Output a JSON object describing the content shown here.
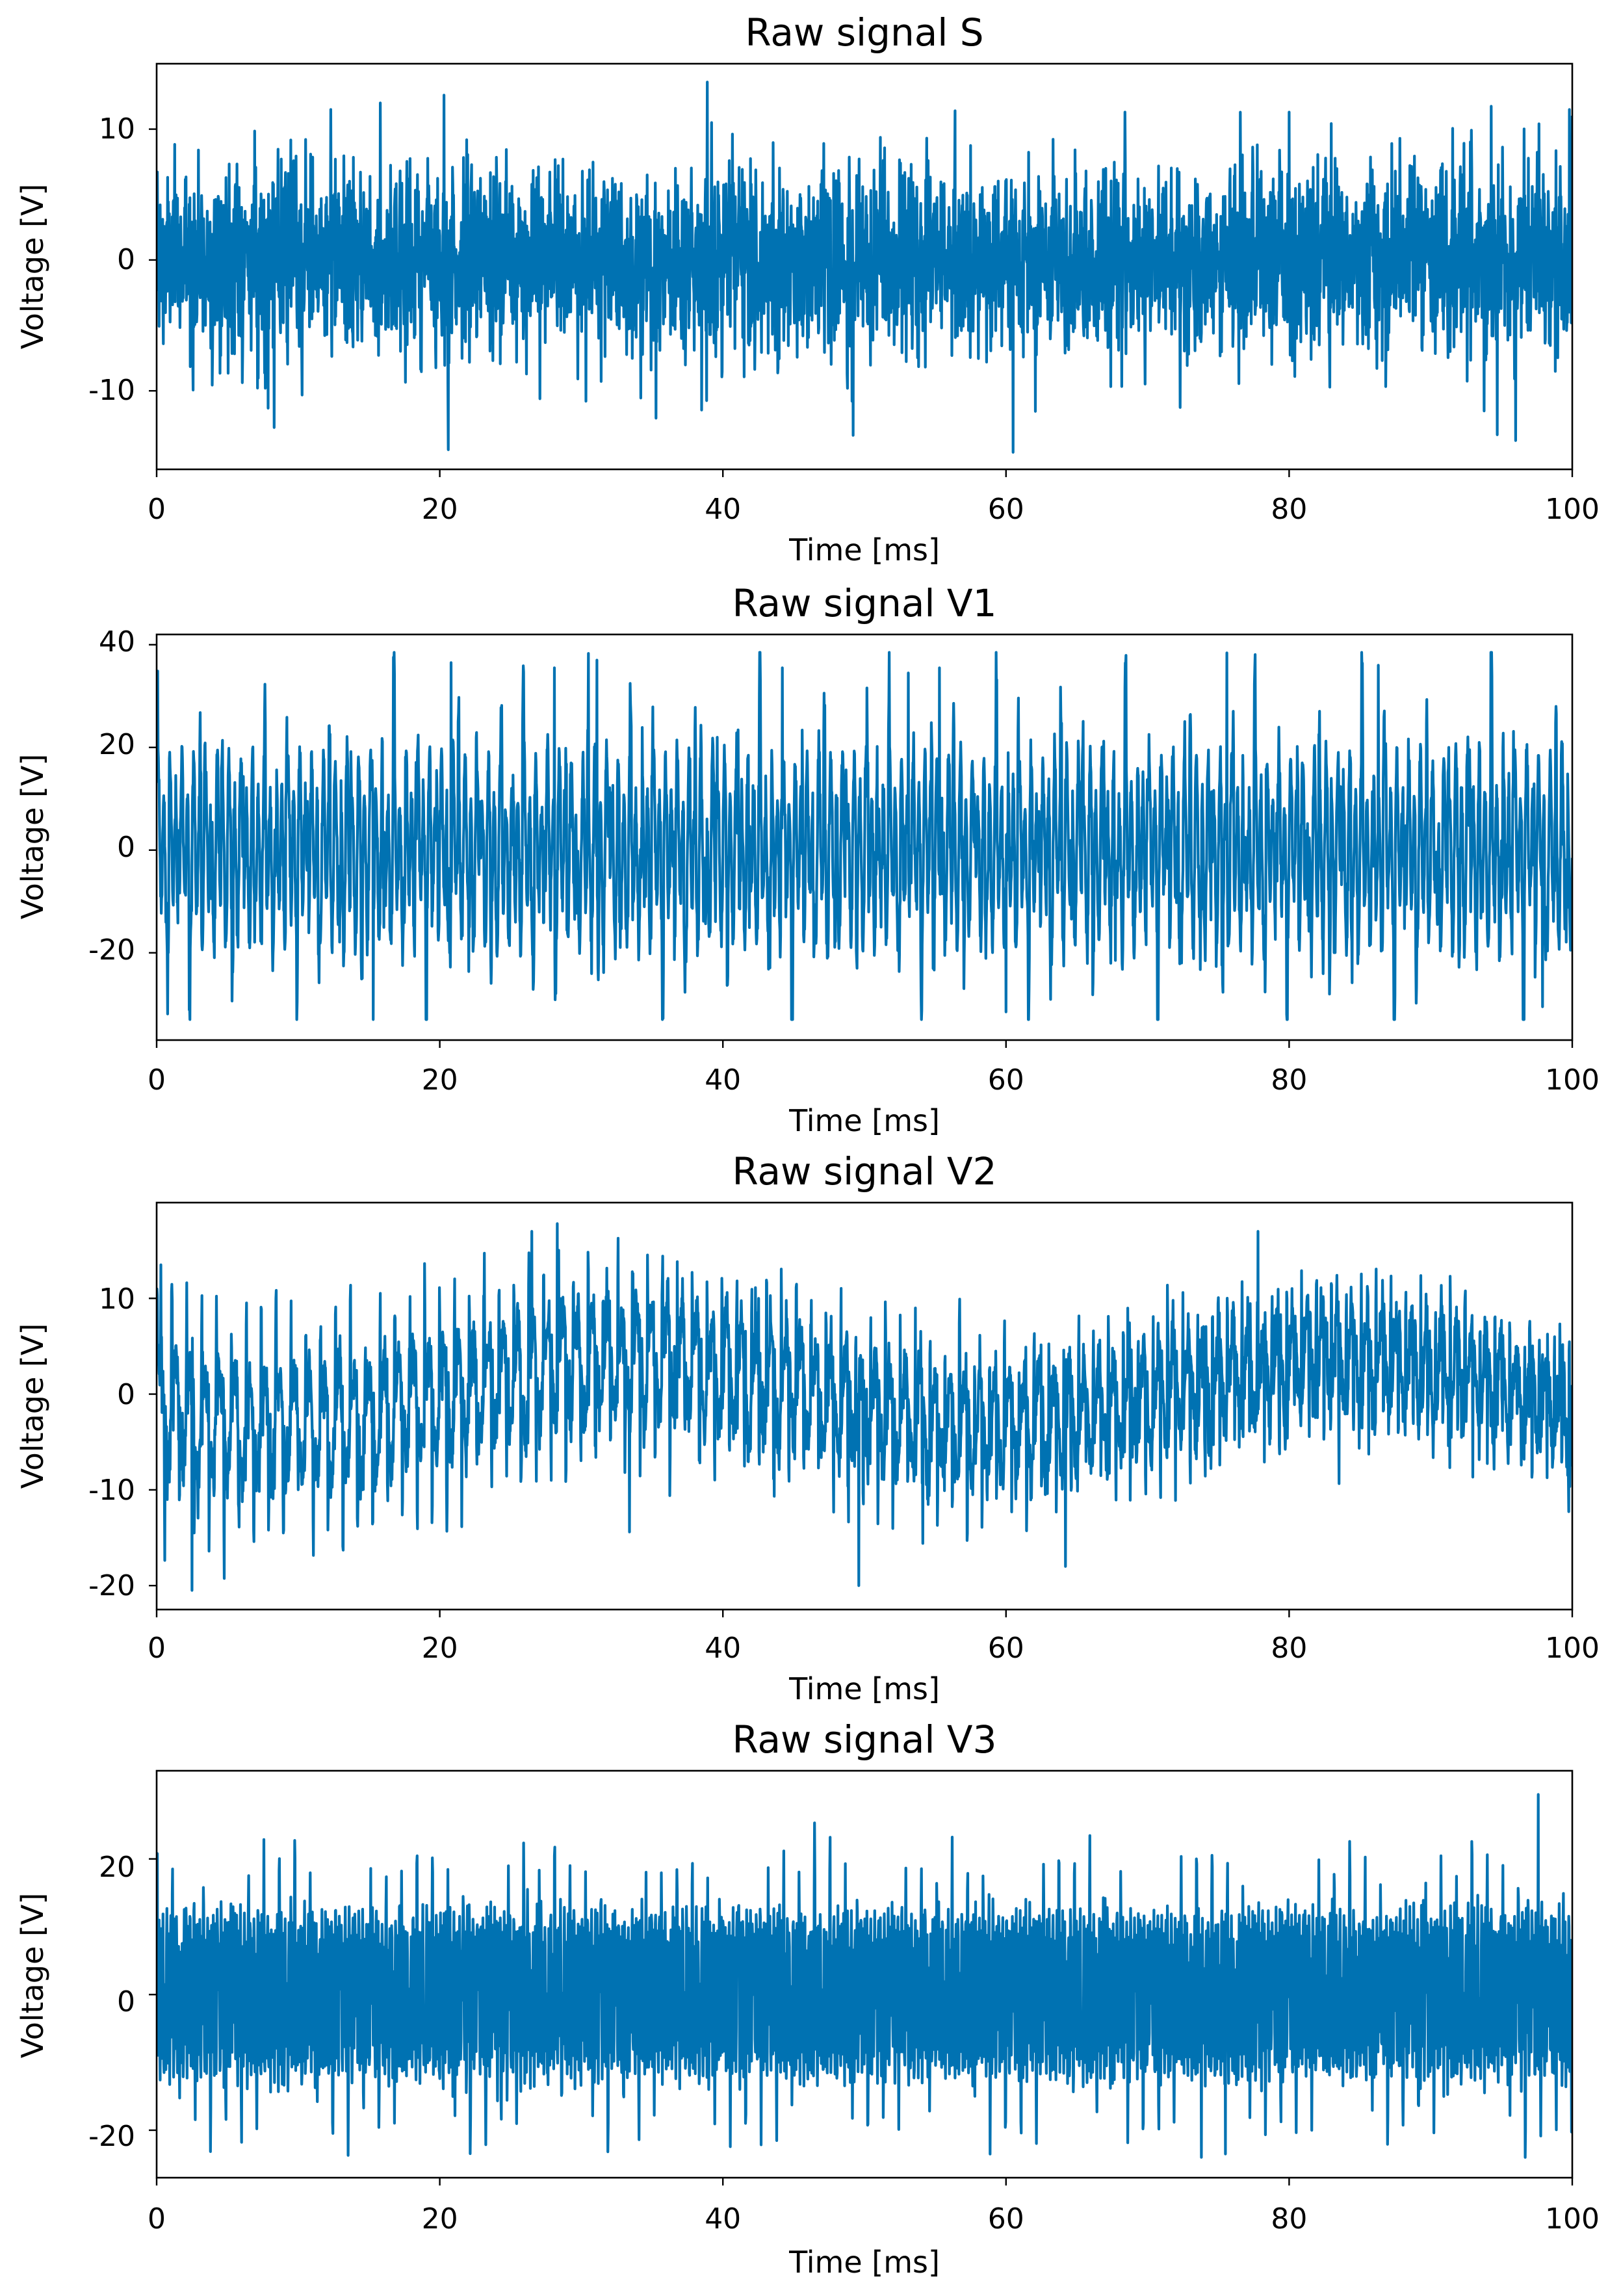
{
  "figure": {
    "line_color": "#0072b2",
    "axes_color": "#000000",
    "background": "#ffffff"
  },
  "chart_data": [
    {
      "type": "line",
      "title": "Raw signal S",
      "xlabel": "Time [ms]",
      "ylabel": "Voltage [V]",
      "xlim": [
        0,
        100
      ],
      "ylim": [
        -16,
        15
      ],
      "xticks": [
        0,
        20,
        40,
        60,
        80,
        100
      ],
      "yticks": [
        -10,
        0,
        10
      ],
      "grid": false,
      "series": [
        {
          "name": "S",
          "description": "broadband noise, roughly zero-mean",
          "sample_rate_per_ms": 40,
          "components": [],
          "noise_sd": 3.6,
          "clip": [
            -14.7,
            13.8
          ],
          "peaks": [
            [
              8.3,
              -12.8
            ],
            [
              12.3,
              11.5
            ],
            [
              15.8,
              12.0
            ],
            [
              20.3,
              12.6
            ],
            [
              20.6,
              -14.5
            ],
            [
              38.9,
              13.6
            ],
            [
              39.2,
              10.5
            ],
            [
              49.2,
              -13.4
            ],
            [
              56.4,
              11.4
            ],
            [
              60.5,
              -14.7
            ],
            [
              68.4,
              11.3
            ],
            [
              80.0,
              11.3
            ],
            [
              96.0,
              -13.8
            ],
            [
              99.8,
              11.5
            ]
          ]
        }
      ]
    },
    {
      "type": "line",
      "title": "Raw signal V1",
      "xlabel": "Time [ms]",
      "ylabel": "Voltage [V]",
      "xlim": [
        0,
        100
      ],
      "ylim": [
        -37,
        42
      ],
      "xticks": [
        0,
        20,
        40,
        60,
        80,
        100
      ],
      "yticks": [
        -20,
        0,
        20,
        40
      ],
      "grid": false,
      "series": [
        {
          "name": "V1",
          "description": "periodic spike train, spikes ~+30 V and ~-25 V",
          "sample_rate_per_ms": 40,
          "components": [
            [
              2.4,
              14,
              0
            ],
            [
              1.2,
              6,
              0
            ]
          ],
          "noise_sd": 2.5,
          "spike_period_ms": 1.52,
          "spike_amplitude": 17,
          "clip": [
            -33,
            38.5
          ],
          "peaks": [
            [
              15.3,
              -33.0
            ],
            [
              20.8,
              36.5
            ],
            [
              28.1,
              35.5
            ],
            [
              30.5,
              38.3
            ],
            [
              31.1,
              37.0
            ],
            [
              44.2,
              35.5
            ],
            [
              53.1,
              34.5
            ],
            [
              55.3,
              35.5
            ],
            [
              60.0,
              -31.5
            ],
            [
              75.6,
              38.4
            ],
            [
              86.3,
              36.0
            ],
            [
              97.9,
              -30.5
            ]
          ]
        }
      ]
    },
    {
      "type": "line",
      "title": "Raw signal V2",
      "xlabel": "Time [ms]",
      "ylabel": "Voltage [V]",
      "xlim": [
        0,
        100
      ],
      "ylim": [
        -22.5,
        20
      ],
      "xticks": [
        0,
        20,
        40,
        60,
        80,
        100
      ],
      "yticks": [
        -20,
        -10,
        0,
        10
      ],
      "grid": false,
      "series": [
        {
          "name": "V2",
          "description": "spike train riding on slow baseline oscillation",
          "sample_rate_per_ms": 40,
          "components": [
            [
              0.95,
              5,
              0
            ],
            [
              0.02,
              3.5,
              3.6
            ]
          ],
          "noise_sd": 1.8,
          "spike_period_ms": 1.05,
          "spike_amplitude": 10.5,
          "clip": [
            -21,
            18
          ],
          "peaks": [
            [
              0.3,
              13.5
            ],
            [
              2.5,
              -20.5
            ],
            [
              28.3,
              17.8
            ],
            [
              26.5,
              17.0
            ],
            [
              33.4,
              -14.4
            ],
            [
              49.6,
              -20.0
            ],
            [
              64.2,
              -18.0
            ],
            [
              77.8,
              17.0
            ]
          ]
        }
      ]
    },
    {
      "type": "line",
      "title": "Raw signal V3",
      "xlabel": "Time [ms]",
      "ylabel": "Voltage [V]",
      "xlim": [
        0,
        100
      ],
      "ylim": [
        -27,
        33
      ],
      "xticks": [
        0,
        20,
        40,
        60,
        80,
        100
      ],
      "yticks": [
        -20,
        0,
        20
      ],
      "grid": false,
      "series": [
        {
          "name": "V3",
          "description": "dense high-frequency oscillation (~10 to -10 V band) with spikes to ~+30 V and ~-22 V",
          "sample_rate_per_ms": 40,
          "components": [
            [
              7.3,
              11,
              0
            ],
            [
              3.1,
              2,
              0
            ]
          ],
          "noise_sd": 1.2,
          "spike_period_ms": 1.08,
          "spike_amplitude": 10,
          "clip": [
            -24,
            31
          ],
          "peaks": [
            [
              73.8,
              -24.0
            ],
            [
              75.5,
              -23.5
            ],
            [
              97.6,
              29.5
            ]
          ]
        }
      ]
    }
  ]
}
